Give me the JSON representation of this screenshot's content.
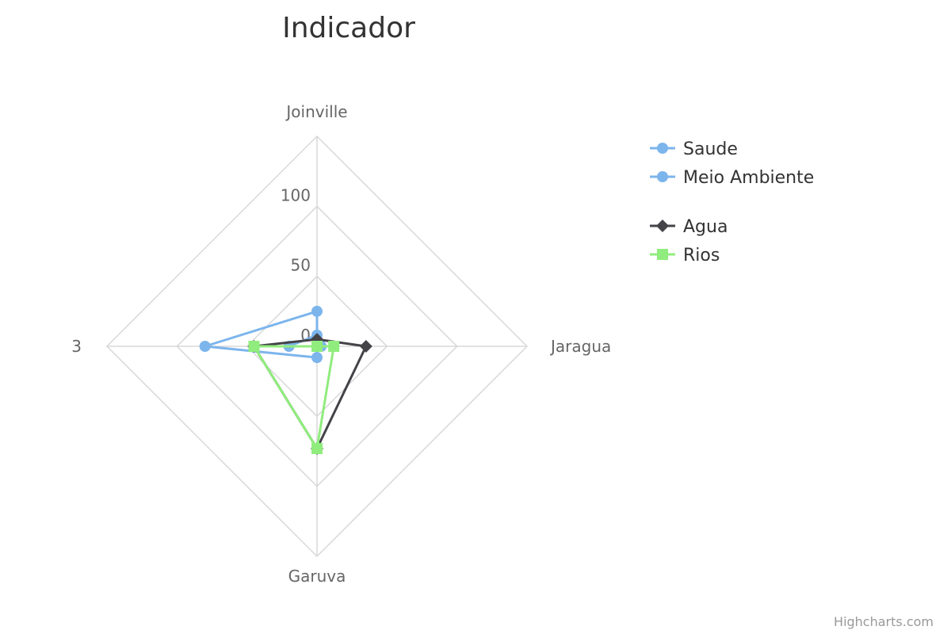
{
  "chart_data": {
    "type": "radar",
    "title": "Indicador",
    "categories": [
      "Joinville",
      "Jaragua",
      "Garuva",
      "3"
    ],
    "radial_ticks": [
      "0",
      "50",
      "100"
    ],
    "radial_range": [
      0,
      150
    ],
    "grid": true,
    "legend_position": "right",
    "series": [
      {
        "name": "Saude",
        "color": "#7cb5ec",
        "marker": "circle",
        "values": [
          8,
          3,
          0,
          20
        ]
      },
      {
        "name": "Meio Ambiente",
        "color": "#7cb5ec",
        "marker": "circle",
        "values": [
          25,
          0,
          8,
          80
        ]
      },
      {
        "name": "Agua",
        "color": "#434348",
        "marker": "diamond",
        "values": [
          5,
          35,
          73,
          45
        ]
      },
      {
        "name": "Rios",
        "color": "#90ed7d",
        "marker": "square",
        "values": [
          0,
          12,
          73,
          45
        ]
      }
    ],
    "credits": "Highcharts.com"
  }
}
